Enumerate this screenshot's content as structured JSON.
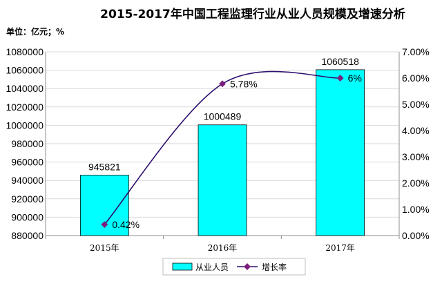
{
  "chart_data": {
    "type": "bar",
    "title": "2015-2017年中国工程监理行业从业人员规模及增速分析",
    "unit_label": "单位：亿元；%",
    "categories": [
      "2015年",
      "2016年",
      "2017年"
    ],
    "series": [
      {
        "name": "从业人员",
        "type": "bar",
        "axis": "left",
        "values": [
          945821,
          1000489,
          1060518
        ],
        "labels": [
          "945821",
          "1000489",
          "1060518"
        ],
        "color": "#00FFFF"
      },
      {
        "name": "增长率",
        "type": "line",
        "axis": "right",
        "values": [
          0.42,
          5.78,
          6
        ],
        "labels": [
          "0.42%",
          "5.78%",
          "6%"
        ],
        "color": "#2E0F6E",
        "marker_color": "#7B1F7E"
      }
    ],
    "y_left": {
      "range": [
        880000,
        1080000
      ],
      "ticks": [
        880000,
        900000,
        920000,
        940000,
        960000,
        980000,
        1000000,
        1020000,
        1040000,
        1060000,
        1080000
      ],
      "tick_labels": [
        "880000",
        "900000",
        "920000",
        "940000",
        "960000",
        "980000",
        "1000000",
        "1020000",
        "1040000",
        "1060000",
        "1080000"
      ]
    },
    "y_right": {
      "range": [
        0,
        7
      ],
      "ticks": [
        0,
        1,
        2,
        3,
        4,
        5,
        6,
        7
      ],
      "tick_labels": [
        "0.00%",
        "1.00%",
        "2.00%",
        "3.00%",
        "4.00%",
        "5.00%",
        "6.00%",
        "7.00%"
      ]
    },
    "grid": true,
    "legend_position": "bottom"
  }
}
